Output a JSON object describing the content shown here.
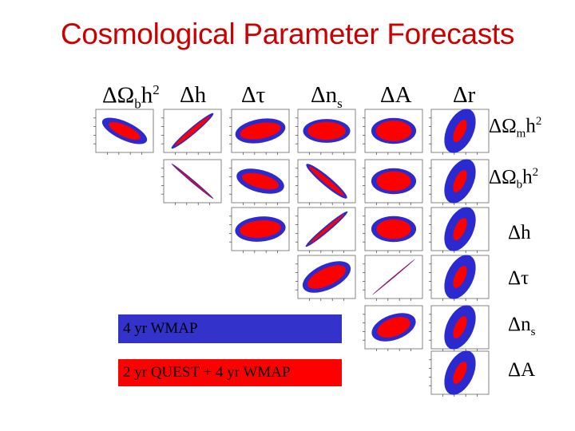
{
  "title": "Cosmological Parameter Forecasts",
  "columns": [
    "ΔΩ_bh²",
    "Δh",
    "Δτ",
    "Δn_s",
    "ΔA",
    "Δr"
  ],
  "rows": [
    "ΔΩ_mh²",
    "ΔΩ_bh²",
    "Δh",
    "Δτ",
    "Δn_s",
    "ΔA"
  ],
  "legend": {
    "wmap_label": "4 yr WMAP",
    "quest_label": "2 yr QUEST + 4 yr WMAP",
    "wmap_color": "#2a2ad0",
    "quest_color": "#ff0000"
  },
  "chart_data": {
    "type": "scatter",
    "subtype": "confidence-ellipse-triangle-matrix",
    "title": "Cosmological Parameter Forecasts",
    "x_parameters": [
      "ΔΩ_bh²",
      "Δh",
      "Δτ",
      "Δn_s",
      "ΔA",
      "Δr"
    ],
    "y_parameters": [
      "ΔΩ_mh²",
      "ΔΩ_bh²",
      "Δh",
      "Δτ",
      "Δn_s",
      "ΔA"
    ],
    "series": [
      {
        "name": "4 yr WMAP",
        "color": "#2a2ad0"
      },
      {
        "name": "2 yr QUEST + 4 yr WMAP",
        "color": "#ff0000"
      }
    ],
    "panels": [
      {
        "row": 0,
        "col": 0,
        "angle": 25,
        "outer": [
          0.85,
          0.42
        ],
        "inner": [
          0.6,
          0.26
        ]
      },
      {
        "row": 0,
        "col": 1,
        "angle": -40,
        "outer": [
          0.95,
          0.16
        ],
        "inner": [
          0.8,
          0.1
        ]
      },
      {
        "row": 0,
        "col": 2,
        "angle": -10,
        "outer": [
          0.88,
          0.55
        ],
        "inner": [
          0.72,
          0.36
        ]
      },
      {
        "row": 0,
        "col": 3,
        "angle": 0,
        "outer": [
          0.82,
          0.55
        ],
        "inner": [
          0.66,
          0.42
        ]
      },
      {
        "row": 0,
        "col": 4,
        "angle": 0,
        "outer": [
          0.78,
          0.6
        ],
        "inner": [
          0.62,
          0.48
        ]
      },
      {
        "row": 0,
        "col": 5,
        "angle": -65,
        "outer": [
          0.82,
          0.62
        ],
        "inner": [
          0.42,
          0.24
        ]
      },
      {
        "row": 1,
        "col": 1,
        "angle": 40,
        "outer": [
          0.95,
          0.07
        ],
        "inner": [
          0.9,
          0.03
        ]
      },
      {
        "row": 1,
        "col": 2,
        "angle": 15,
        "outer": [
          0.85,
          0.52
        ],
        "inner": [
          0.66,
          0.32
        ]
      },
      {
        "row": 1,
        "col": 3,
        "angle": 40,
        "outer": [
          0.92,
          0.22
        ],
        "inner": [
          0.8,
          0.12
        ]
      },
      {
        "row": 1,
        "col": 4,
        "angle": 0,
        "outer": [
          0.78,
          0.6
        ],
        "inner": [
          0.6,
          0.46
        ]
      },
      {
        "row": 1,
        "col": 5,
        "angle": -65,
        "outer": [
          0.82,
          0.62
        ],
        "inner": [
          0.42,
          0.24
        ]
      },
      {
        "row": 2,
        "col": 2,
        "angle": -5,
        "outer": [
          0.88,
          0.58
        ],
        "inner": [
          0.72,
          0.4
        ]
      },
      {
        "row": 2,
        "col": 3,
        "angle": -40,
        "outer": [
          0.95,
          0.14
        ],
        "inner": [
          0.8,
          0.07
        ]
      },
      {
        "row": 2,
        "col": 4,
        "angle": 0,
        "outer": [
          0.78,
          0.6
        ],
        "inner": [
          0.6,
          0.46
        ]
      },
      {
        "row": 2,
        "col": 5,
        "angle": -65,
        "outer": [
          0.82,
          0.62
        ],
        "inner": [
          0.42,
          0.24
        ]
      },
      {
        "row": 3,
        "col": 3,
        "angle": -25,
        "outer": [
          0.9,
          0.58
        ],
        "inner": [
          0.72,
          0.4
        ]
      },
      {
        "row": 3,
        "col": 4,
        "angle": -40,
        "outer": [
          0.97,
          0.03
        ],
        "inner": [
          0.9,
          0.015
        ]
      },
      {
        "row": 3,
        "col": 5,
        "angle": -65,
        "outer": [
          0.82,
          0.62
        ],
        "inner": [
          0.42,
          0.24
        ]
      },
      {
        "row": 4,
        "col": 4,
        "angle": -20,
        "outer": [
          0.8,
          0.58
        ],
        "inner": [
          0.6,
          0.42
        ]
      },
      {
        "row": 4,
        "col": 5,
        "angle": -65,
        "outer": [
          0.82,
          0.62
        ],
        "inner": [
          0.42,
          0.24
        ]
      },
      {
        "row": 5,
        "col": 5,
        "angle": -65,
        "outer": [
          0.82,
          0.62
        ],
        "inner": [
          0.42,
          0.24
        ]
      }
    ]
  }
}
